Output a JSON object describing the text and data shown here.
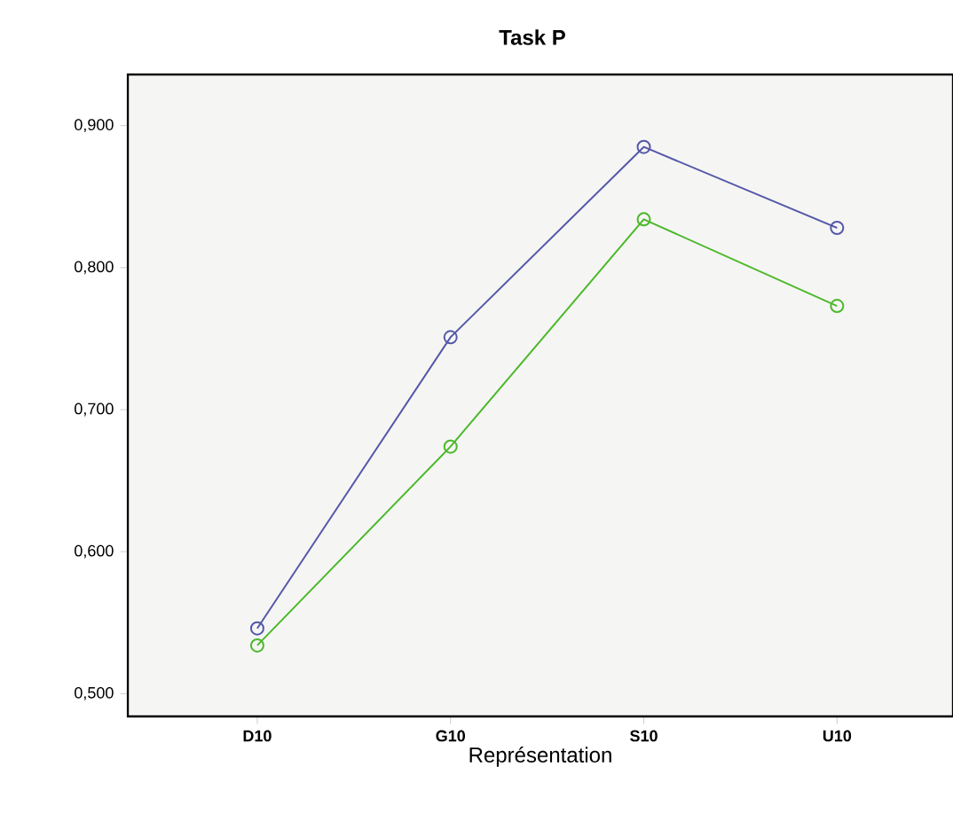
{
  "chart_data": {
    "type": "line",
    "title": "Task P",
    "xlabel": "Représentation",
    "categories": [
      "D10",
      "G10",
      "S10",
      "U10"
    ],
    "series": [
      {
        "color": "#5558a8",
        "values": [
          0.546,
          0.751,
          0.885,
          0.828
        ]
      },
      {
        "color": "#4cb82a",
        "values": [
          0.534,
          0.674,
          0.834,
          0.773
        ]
      }
    ],
    "ylim": [
      0.484,
      0.936
    ],
    "yticks": [
      {
        "value": 0.5,
        "label": "0,500"
      },
      {
        "value": 0.6,
        "label": "0,600"
      },
      {
        "value": 0.7,
        "label": "0,700"
      },
      {
        "value": 0.8,
        "label": "0,800"
      },
      {
        "value": 0.9,
        "label": "0,900"
      }
    ],
    "marker": "circle",
    "line_style": "solid",
    "grid": false
  }
}
